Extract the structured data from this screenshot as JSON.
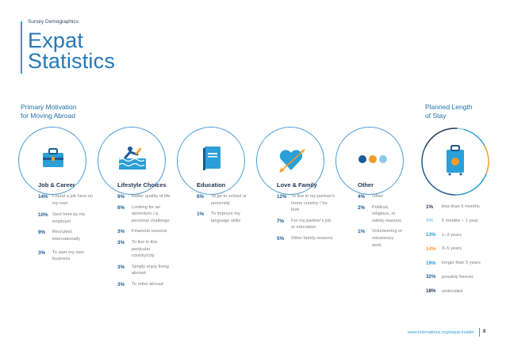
{
  "header": {
    "section_label": "Survey Demographics",
    "title_line1": "Expat",
    "title_line2": "Statistics"
  },
  "labels": {
    "motivation_line1": "Primary Motivation",
    "motivation_line2": "for Moving Abroad",
    "stay_line1": "Planned Length",
    "stay_line2": "of Stay"
  },
  "icons": [
    "briefcase-icon",
    "swimmer-icon",
    "book-icon",
    "heart-arrow-icon",
    "dots-icon",
    "suitcase-icon"
  ],
  "colors": {
    "accent": "#2a9fd8",
    "title": "#2378b8",
    "dark_blue": "#1e5a93",
    "orange": "#f39c2a",
    "light_blue": "#8fc8ea"
  },
  "categories": [
    {
      "title": "Job & Career",
      "items": [
        {
          "pct": "14%",
          "text": "Found a job here on my own"
        },
        {
          "pct": "10%",
          "text": "Sent here by my employer"
        },
        {
          "pct": "9%",
          "text": "Recruited internationally"
        },
        {
          "pct": "3%",
          "text": "To start my own business"
        }
      ]
    },
    {
      "title": "Lifestyle Choices",
      "items": [
        {
          "pct": "9%",
          "text": "Better quality of life"
        },
        {
          "pct": "6%",
          "text": "Looking for an adventure / a personal challenge"
        },
        {
          "pct": "3%",
          "text": "Financial reasons"
        },
        {
          "pct": "3%",
          "text": "To live in this particular country/city"
        },
        {
          "pct": "3%",
          "text": "Simply enjoy living abroad"
        },
        {
          "pct": "3%",
          "text": "To retire abroad"
        }
      ]
    },
    {
      "title": "Education",
      "items": [
        {
          "pct": "6%",
          "text": "To go to school or university"
        },
        {
          "pct": "1%",
          "text": "To improve my language skills"
        }
      ]
    },
    {
      "title": "Love & Family",
      "items": [
        {
          "pct": "12%",
          "text": "To live in my partner's home country / for love"
        },
        {
          "pct": "7%",
          "text": "For my partner's job or education"
        },
        {
          "pct": "5%",
          "text": "Other family reasons"
        }
      ]
    },
    {
      "title": "Other",
      "items": [
        {
          "pct": "4%",
          "text": "Other"
        },
        {
          "pct": "2%",
          "text": "Political, religious, or safety reasons"
        },
        {
          "pct": "1%",
          "text": "Volunteering or missionary work"
        }
      ]
    }
  ],
  "planned_stay": [
    {
      "pct": "1%",
      "text": "less than 6 months",
      "color": "#1e3552",
      "value": 1
    },
    {
      "pct": "3%",
      "text": "6 months – 1 year",
      "color": "#8fc8ea",
      "value": 3
    },
    {
      "pct": "13%",
      "text": "1–3 years",
      "color": "#2a9fd8",
      "value": 13
    },
    {
      "pct": "14%",
      "text": "3–5 years",
      "color": "#f39c2a",
      "value": 14
    },
    {
      "pct": "19%",
      "text": "longer than 5 years",
      "color": "#2a9fd8",
      "value": 19
    },
    {
      "pct": "32%",
      "text": "possibly forever",
      "color": "#1e5a93",
      "value": 32
    },
    {
      "pct": "18%",
      "text": "undecided",
      "color": "#1e3552",
      "value": 18
    }
  ],
  "footer": {
    "url": "www.internations.org/expat-insider",
    "page": "8"
  }
}
